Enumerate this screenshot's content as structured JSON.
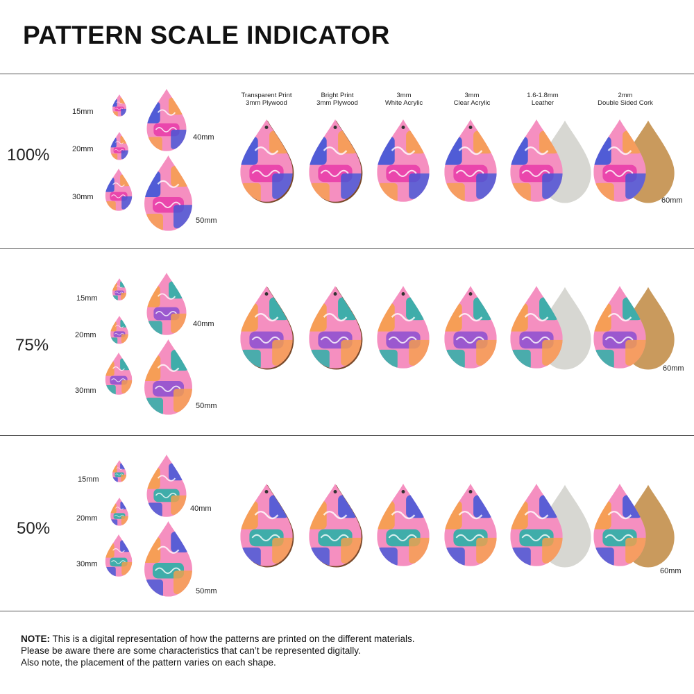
{
  "title": "PATTERN SCALE INDICATOR",
  "materials": [
    {
      "line1": "Transparent Print",
      "line2": "3mm Plywood"
    },
    {
      "line1": "Bright Print",
      "line2": "3mm Plywood"
    },
    {
      "line1": "3mm",
      "line2": "White Acrylic"
    },
    {
      "line1": "3mm",
      "line2": "Clear Acrylic"
    },
    {
      "line1": "1.6-1.8mm",
      "line2": "Leather"
    },
    {
      "line1": "2mm",
      "line2": "Double Sided Cork"
    }
  ],
  "sizes": [
    "15mm",
    "20mm",
    "30mm",
    "40mm",
    "50mm",
    "60mm"
  ],
  "sections": [
    {
      "scale": "100%"
    },
    {
      "scale": "75%"
    },
    {
      "scale": "50%"
    }
  ],
  "colors": {
    "pink": "#f58fc0",
    "magenta": "#e83aa8",
    "orange": "#f6a04a",
    "blue": "#3e56d8",
    "teal": "#1fb3a6",
    "purple": "#8b4fd1",
    "leather": "#d7d7d2",
    "cork": "#c99a5d",
    "wood": "#7a4a2a"
  },
  "note": {
    "bold": "NOTE:",
    "line1": " This is a digital representation of how the patterns are printed on the different materials.",
    "line2": "Please be aware there are some characteristics that can’t be represented digitally.",
    "line3": "Also note, the placement of the pattern varies on each shape."
  }
}
